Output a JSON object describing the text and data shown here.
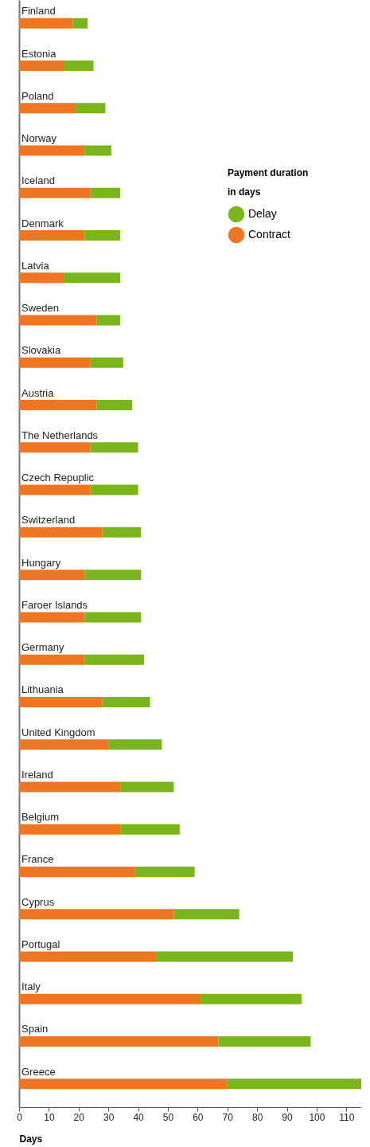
{
  "chart_data": {
    "type": "bar",
    "orientation": "horizontal",
    "stacked": true,
    "xlabel": "Days",
    "legend_title": "Payment duration\nin days",
    "legend": "top right",
    "grid": false,
    "categories": [
      "Finland",
      "Estonia",
      "Poland",
      "Norway",
      "Iceland",
      "Denmark",
      "Latvia",
      "Sweden",
      "Slovakia",
      "Austria",
      "The Netherlands",
      "Czech Repuplic",
      "Switzerland",
      "Hungary",
      "Faroer Islands",
      "Germany",
      "Lithuania",
      "United Kingdom",
      "Ireland",
      "Belgium",
      "France",
      "Cyprus",
      "Portugal",
      "Italy",
      "Spain",
      "Greece"
    ],
    "series": [
      {
        "name": "Contract",
        "color": "#ee7622",
        "values": [
          18,
          15,
          19,
          22,
          24,
          22,
          15,
          26,
          24,
          26,
          24,
          24,
          28,
          22,
          22,
          22,
          28,
          30,
          34,
          34,
          39,
          52,
          46,
          61,
          67,
          70
        ]
      },
      {
        "name": "Delay",
        "color": "#7ab51d",
        "values": [
          5,
          10,
          10,
          9,
          10,
          12,
          19,
          8,
          11,
          12,
          16,
          16,
          13,
          19,
          19,
          20,
          16,
          18,
          18,
          20,
          20,
          22,
          46,
          34,
          31,
          45
        ]
      }
    ],
    "xlim": [
      0,
      115
    ],
    "xticks": [
      0,
      10,
      20,
      30,
      40,
      50,
      60,
      70,
      80,
      90,
      100,
      110
    ]
  }
}
